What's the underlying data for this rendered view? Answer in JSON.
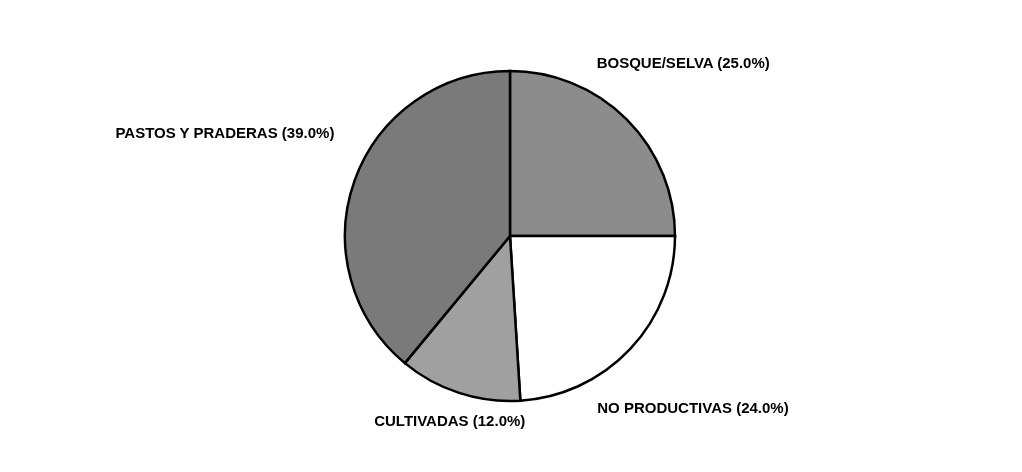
{
  "chart_data": {
    "type": "pie",
    "categories": [
      "BOSQUE/SELVA",
      "NO PRODUCTIVAS",
      "CULTIVADAS",
      "PASTOS Y PRADERAS"
    ],
    "values": [
      25,
      24,
      12,
      39
    ],
    "value_labels": [
      "(25.0%)",
      "(24.0%)",
      "(12.0%)",
      "(39.0%)"
    ],
    "colors": [
      "#8c8c8c",
      "#ffffff",
      "#a0a0a0",
      "#7a7a7a"
    ]
  }
}
